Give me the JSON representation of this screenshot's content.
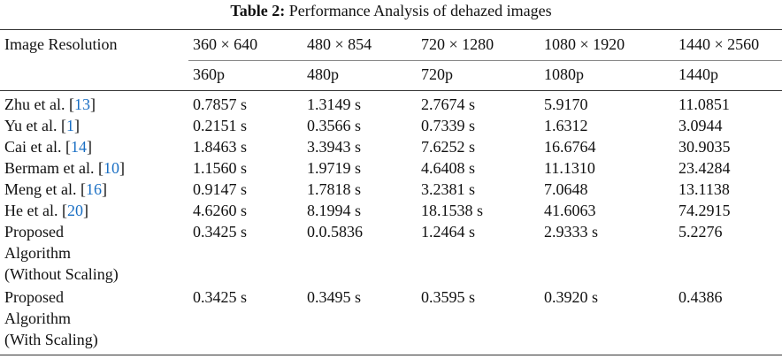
{
  "title": {
    "label": "Table 2:",
    "text": "Performance Analysis of dehazed images"
  },
  "table": {
    "header": [
      "Image Resolution",
      "360 × 640",
      "480 × 854",
      "720 × 1280",
      "1080 × 1920",
      "1440 × 2560"
    ],
    "subheader": [
      "360p",
      "480p",
      "720p",
      "1080p",
      "1440p"
    ],
    "rows": [
      {
        "method": {
          "prefix": "Zhu et al. [",
          "ref": "13",
          "suffix": "]"
        },
        "values": [
          "0.7857 s",
          "1.3149 s",
          "2.7674 s",
          "5.9170",
          "11.0851"
        ]
      },
      {
        "method": {
          "prefix": "Yu et al. [",
          "ref": "1",
          "suffix": "]"
        },
        "values": [
          "0.2151 s",
          "0.3566 s",
          "0.7339 s",
          "1.6312",
          "3.0944"
        ]
      },
      {
        "method": {
          "prefix": "Cai et al. [",
          "ref": "14",
          "suffix": "]"
        },
        "values": [
          "1.8463 s",
          "3.3943 s",
          "7.6252 s",
          "16.6764",
          "30.9035"
        ]
      },
      {
        "method": {
          "prefix": "Bermam et al. [",
          "ref": "10",
          "suffix": "]"
        },
        "values": [
          "1.1560 s",
          "1.9719 s",
          "4.6408 s",
          "11.1310",
          "23.4284"
        ]
      },
      {
        "method": {
          "prefix": "Meng et al. [",
          "ref": "16",
          "suffix": "]"
        },
        "values": [
          "0.9147 s",
          "1.7818 s",
          "3.2381 s",
          "7.0648",
          "13.1138"
        ]
      },
      {
        "method": {
          "prefix": "He et al. [",
          "ref": "20",
          "suffix": "]"
        },
        "values": [
          "4.6260 s",
          "8.1994 s",
          "18.1538 s",
          "41.6063",
          "74.2915"
        ]
      },
      {
        "method": {
          "lines": [
            "Proposed",
            "Algorithm",
            "(Without Scaling)"
          ]
        },
        "values": [
          "0.3425 s",
          "0.0.5836",
          "1.2464 s",
          "2.9333 s",
          "5.2276"
        ]
      },
      {
        "method": {
          "lines": [
            "Proposed",
            "Algorithm",
            "(With Scaling)"
          ]
        },
        "values": [
          "0.3425 s",
          "0.3495 s",
          "0.3595 s",
          "0.3920 s",
          "0.4386"
        ]
      }
    ]
  }
}
